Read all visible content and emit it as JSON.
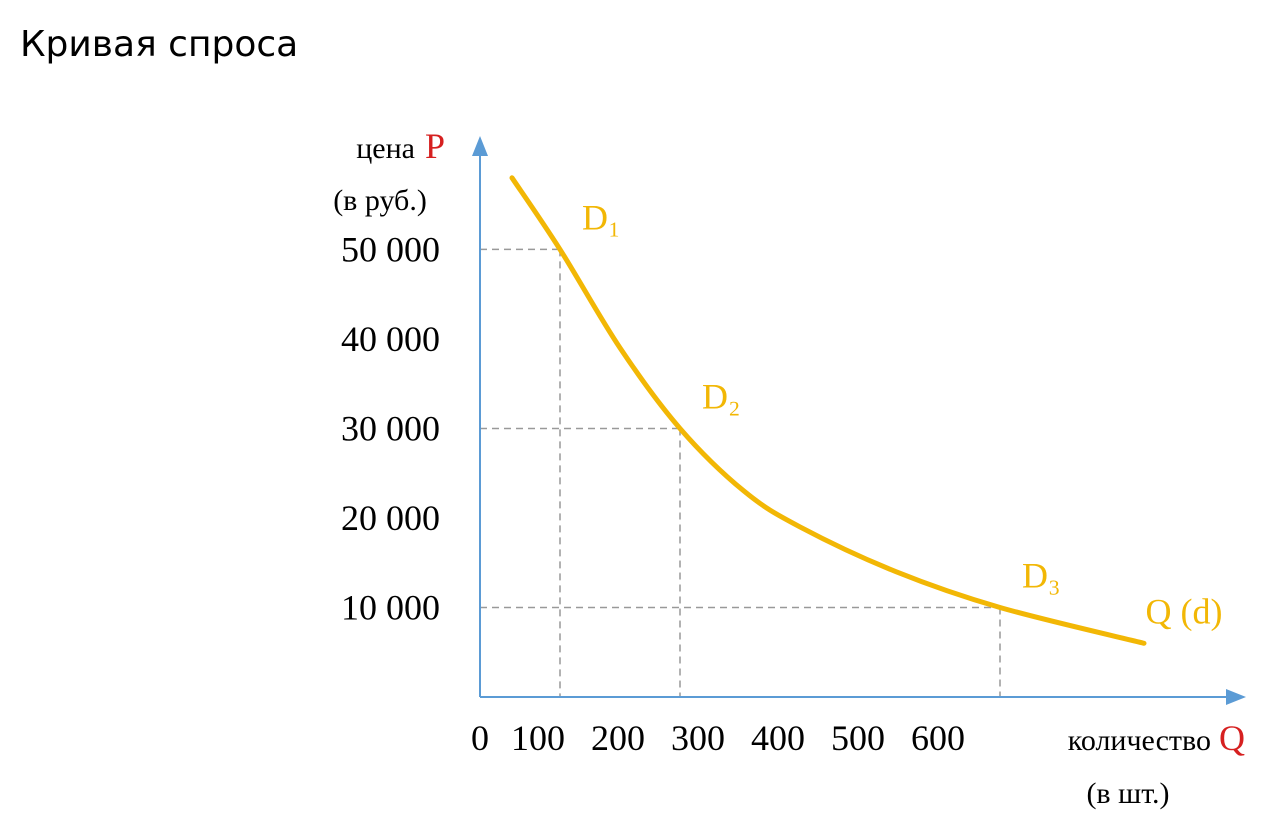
{
  "chart_data": {
    "type": "line",
    "title": "Кривая спроса",
    "y_label": "цена",
    "y_label_symbol": "P",
    "y_label_unit": "(в руб.)",
    "x_label": "количество",
    "x_label_symbol": "Q",
    "x_label_unit": "(в шт.)",
    "symbol_color": "#d62020",
    "axis_color": "#5b9bd5",
    "xlim": [
      0,
      950
    ],
    "ylim": [
      0,
      62000
    ],
    "xticks": [
      0,
      100,
      200,
      300,
      400,
      500,
      600
    ],
    "yticks": [
      {
        "value": 10000,
        "label": "10 000"
      },
      {
        "value": 20000,
        "label": "20 000"
      },
      {
        "value": 30000,
        "label": "30 000"
      },
      {
        "value": 40000,
        "label": "40 000"
      },
      {
        "value": 50000,
        "label": "50 000"
      }
    ],
    "series": [
      {
        "name": "Q (d)",
        "color": "#f2b705",
        "x": [
          40,
          100,
          175,
          250,
          330,
          400,
          520,
          650,
          830
        ],
        "values": [
          58000,
          50000,
          39000,
          30000,
          23000,
          19000,
          14000,
          10000,
          6000
        ]
      }
    ],
    "annotations": [
      {
        "label": "D₁",
        "x": 100,
        "y": 50000
      },
      {
        "label": "D₂",
        "x": 250,
        "y": 30000
      },
      {
        "label": "D₃",
        "x": 650,
        "y": 10000
      }
    ]
  }
}
